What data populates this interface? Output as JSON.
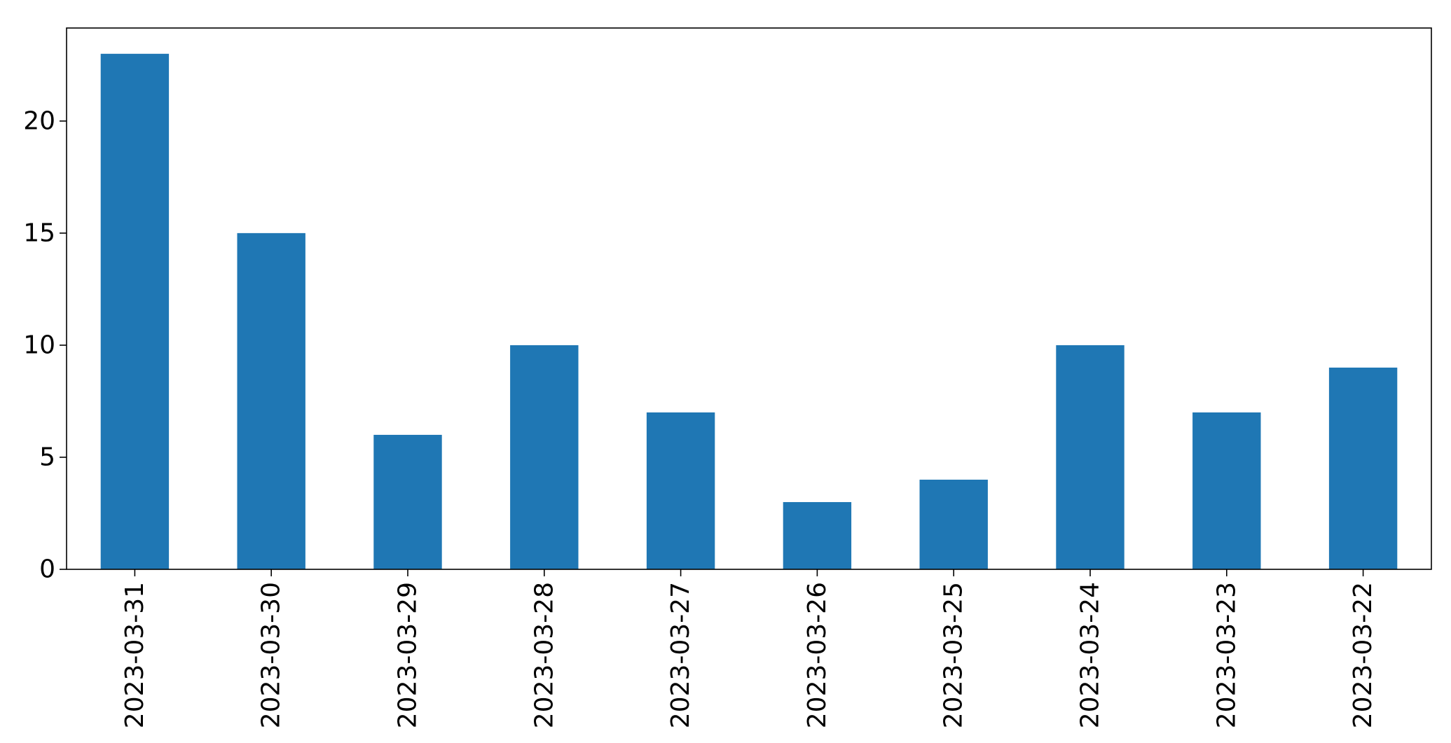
{
  "chart_data": {
    "type": "bar",
    "categories": [
      "2023-03-31",
      "2023-03-30",
      "2023-03-29",
      "2023-03-28",
      "2023-03-27",
      "2023-03-26",
      "2023-03-25",
      "2023-03-24",
      "2023-03-23",
      "2023-03-22"
    ],
    "values": [
      23,
      15,
      6,
      10,
      7,
      3,
      4,
      10,
      7,
      9
    ],
    "title": "",
    "xlabel": "",
    "ylabel": "",
    "ylim": [
      0,
      24.15
    ],
    "yticks": [
      0,
      5,
      10,
      15,
      20
    ],
    "grid": false,
    "legend": "none",
    "colors": {
      "bar": "#1f77b4",
      "axes": "#000000",
      "background": "#ffffff"
    }
  }
}
